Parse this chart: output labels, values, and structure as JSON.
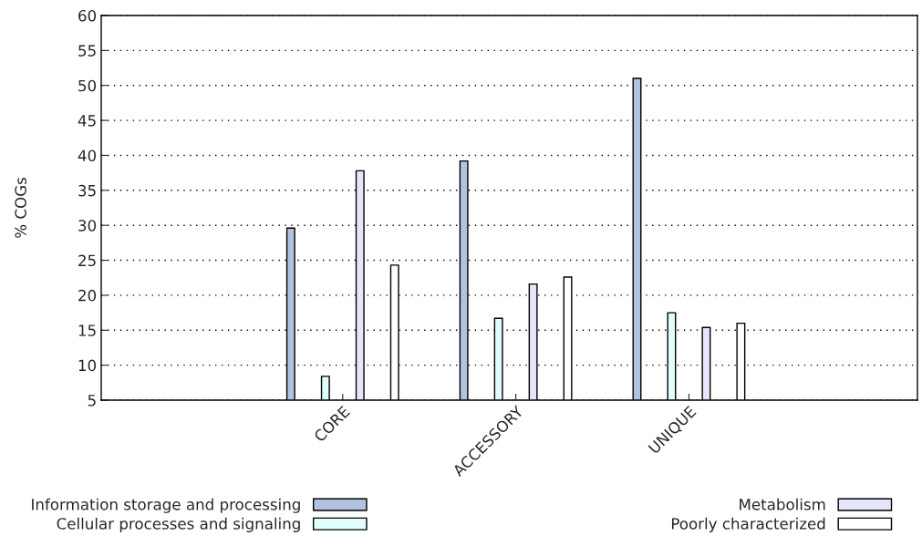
{
  "chart_data": {
    "type": "bar",
    "ylabel": "% COGs",
    "categories": [
      "CORE",
      "ACCESSORY",
      "UNIQUE"
    ],
    "series": [
      {
        "name": "Information storage and processing",
        "color": "#b0c4de",
        "values": [
          29.6,
          39.2,
          51
        ]
      },
      {
        "name": "Cellular processes and signaling",
        "color": "#e0fffc",
        "values": [
          8.4,
          16.7,
          17.5
        ]
      },
      {
        "name": "Metabolism",
        "color": "#e6e6fa",
        "values": [
          37.8,
          21.6,
          15.4
        ]
      },
      {
        "name": "Poorly characterized",
        "color": "#ffffff",
        "values": [
          24.3,
          22.6,
          16.0
        ]
      }
    ],
    "ylim": [
      5,
      60
    ],
    "yticks": [
      5,
      10,
      15,
      20,
      25,
      30,
      35,
      40,
      45,
      50,
      55,
      60
    ],
    "grid": "y",
    "legend": "bottom"
  }
}
